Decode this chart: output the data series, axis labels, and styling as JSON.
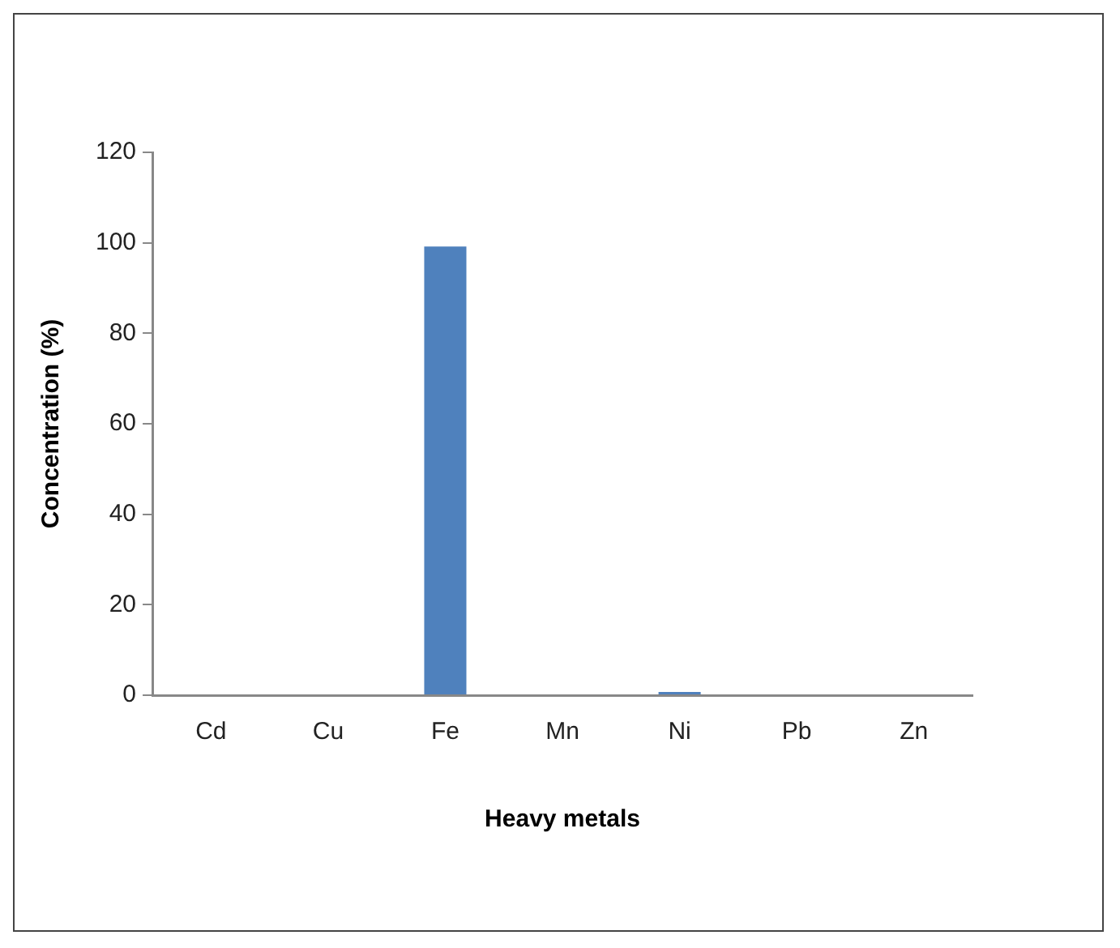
{
  "chart_data": {
    "type": "bar",
    "xlabel": "Heavy metals",
    "ylabel": "Concentration (%)",
    "categories": [
      "Cd",
      "Cu",
      "Fe",
      "Mn",
      "Ni",
      "Pb",
      "Zn"
    ],
    "values": [
      0,
      0,
      99.2,
      0,
      0.7,
      0,
      0
    ],
    "color": "#4f81bd",
    "ylim": [
      0,
      120
    ],
    "yticks": [
      0,
      20,
      40,
      60,
      80,
      100,
      120
    ],
    "grid": false
  }
}
